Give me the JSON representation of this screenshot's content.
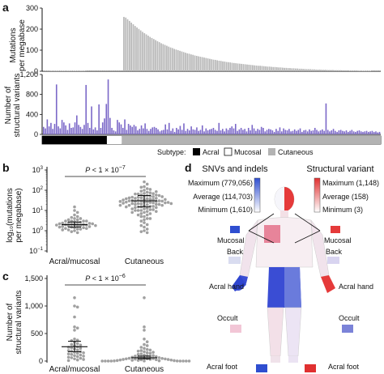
{
  "panel_labels": {
    "a": "a",
    "b": "b",
    "c": "c",
    "d": "d"
  },
  "chart_data": [
    {
      "panel": "a-top",
      "type": "bar",
      "ylabel": "Mutations per megabase",
      "ylim": [
        0,
        300
      ],
      "yticks": [
        0,
        100,
        200,
        300
      ],
      "subtype_counts": {
        "acral": 35,
        "mucosal": 8,
        "cutaneous": 140
      },
      "values": [
        4,
        3,
        3,
        3,
        2,
        2,
        2,
        2,
        2,
        2,
        2,
        2,
        2,
        2,
        2,
        2,
        2,
        2,
        2,
        2,
        2,
        2,
        2,
        1,
        1,
        1,
        1,
        1,
        1,
        1,
        1,
        1,
        1,
        1,
        1,
        1,
        1,
        1,
        1,
        1,
        1,
        1,
        1,
        258,
        255,
        247,
        239,
        231,
        223,
        215,
        208,
        201,
        194,
        187,
        181,
        175,
        169,
        163,
        158,
        153,
        148,
        143,
        138,
        133,
        129,
        125,
        121,
        117,
        113,
        110,
        106,
        103,
        100,
        97,
        94,
        91,
        88,
        85,
        83,
        80,
        78,
        75,
        73,
        71,
        69,
        67,
        65,
        63,
        61,
        59,
        57,
        55,
        54,
        52,
        50,
        49,
        47,
        46,
        44,
        43,
        42,
        40,
        39,
        38,
        37,
        36,
        35,
        34,
        33,
        32,
        31,
        30,
        29,
        28,
        27,
        26,
        26,
        25,
        24,
        23,
        22,
        22,
        21,
        20,
        20,
        19,
        18,
        18,
        17,
        16,
        16,
        15,
        15,
        14,
        14,
        13,
        13,
        12,
        12,
        11,
        11,
        10,
        10,
        10,
        9,
        9,
        8,
        8,
        8,
        7,
        7,
        7,
        6,
        6,
        6,
        6,
        5,
        5,
        5,
        5,
        4,
        4,
        4,
        4,
        3,
        3,
        3,
        3,
        3,
        2,
        2,
        2,
        2,
        2,
        2,
        2,
        1,
        1,
        1,
        1,
        1
      ]
    },
    {
      "panel": "a-bottom",
      "type": "bar",
      "ylabel": "Number of structural variants",
      "ylim": [
        0,
        1200
      ],
      "yticks": [
        0,
        400,
        800,
        1200
      ],
      "values": [
        150,
        120,
        300,
        160,
        230,
        110,
        210,
        1000,
        160,
        120,
        290,
        240,
        180,
        90,
        220,
        130,
        140,
        240,
        380,
        190,
        150,
        110,
        190,
        990,
        230,
        130,
        560,
        100,
        140,
        80,
        600,
        130,
        240,
        320,
        610,
        1100,
        330,
        130,
        80,
        60,
        290,
        240,
        200,
        130,
        300,
        90,
        210,
        180,
        150,
        190,
        160,
        80,
        110,
        180,
        120,
        220,
        110,
        70,
        110,
        140,
        150,
        130,
        100,
        60,
        80,
        90,
        200,
        100,
        230,
        70,
        120,
        50,
        130,
        100,
        170,
        90,
        220,
        70,
        110,
        80,
        160,
        100,
        90,
        140,
        70,
        90,
        180,
        60,
        120,
        80,
        100,
        110,
        130,
        90,
        70,
        230,
        80,
        110,
        60,
        120,
        90,
        130,
        160,
        120,
        210,
        70,
        100,
        130,
        90,
        110,
        60,
        130,
        80,
        190,
        120,
        70,
        110,
        90,
        150,
        130,
        60,
        90,
        110,
        100,
        80,
        50,
        110,
        70,
        140,
        60,
        120,
        90,
        80,
        110,
        60,
        70,
        100,
        70,
        90,
        120,
        50,
        80,
        90,
        60,
        100,
        70,
        80,
        130,
        90,
        60,
        80,
        100,
        70,
        620,
        90,
        60,
        80,
        110,
        70,
        50,
        80,
        90,
        70,
        60,
        80,
        50,
        70,
        90,
        60,
        50,
        70,
        80,
        60,
        50,
        60,
        70,
        50,
        60,
        70,
        50,
        60,
        40,
        50
      ]
    },
    {
      "panel": "b",
      "type": "scatter",
      "ylabel": "log10(mutations per megabase)",
      "categories": [
        "Acral/mucosal",
        "Cutaneous"
      ],
      "ylim": [
        0.1,
        1000
      ],
      "log_scale": true,
      "annotation": "P < 1 × 10−7",
      "summary": [
        {
          "category": "Acral/mucosal",
          "mean": 2.0,
          "lo": 1.5,
          "hi": 2.7
        },
        {
          "category": "Cutaneous",
          "mean": 30,
          "lo": 15,
          "hi": 55
        }
      ],
      "series": [
        {
          "category": "Acral/mucosal",
          "values": [
            15,
            10,
            8,
            6,
            5,
            4.5,
            4,
            4,
            3.5,
            3.5,
            3,
            3,
            3,
            3,
            2.8,
            2.6,
            2.5,
            2.5,
            2.4,
            2.3,
            2.2,
            2.2,
            2.1,
            2,
            2,
            2,
            1.9,
            1.9,
            1.8,
            1.8,
            1.7,
            1.7,
            1.6,
            1.6,
            1.5,
            1.5,
            1.4,
            1.4,
            1.3,
            1.3,
            1.2,
            1.2,
            1.1,
            1.1,
            1,
            0.9,
            0.8
          ]
        },
        {
          "category": "Cutaneous",
          "values": [
            260,
            200,
            150,
            120,
            100,
            90,
            80,
            75,
            70,
            65,
            60,
            55,
            52,
            50,
            48,
            45,
            43,
            40,
            40,
            38,
            36,
            35,
            34,
            32,
            31,
            30,
            30,
            30,
            29,
            28,
            28,
            27,
            26,
            25,
            25,
            24,
            24,
            23,
            22,
            22,
            21,
            20,
            20,
            20,
            19,
            18,
            18,
            17,
            16,
            16,
            15,
            15,
            14,
            14,
            13,
            12,
            12,
            11,
            11,
            10,
            10,
            10,
            9,
            9,
            8,
            8,
            7,
            7,
            6,
            6,
            5,
            5,
            4,
            4,
            3.5,
            3,
            2.5,
            2,
            1.8,
            1.5,
            1.2,
            1,
            0.9,
            0.8,
            45,
            55,
            65,
            35,
            25,
            15,
            18,
            22,
            28,
            33,
            38,
            42,
            48,
            58,
            68,
            85,
            110,
            140
          ]
        }
      ]
    },
    {
      "panel": "c",
      "type": "scatter",
      "ylabel": "Number of structural variants",
      "categories": [
        "Acral/mucosal",
        "Cutaneous"
      ],
      "ylim": [
        0,
        1500
      ],
      "yticks": [
        0,
        500,
        1000,
        1500
      ],
      "annotation": "P < 1 × 10−6",
      "summary": [
        {
          "category": "Acral/mucosal",
          "mean": 260,
          "lo": 170,
          "hi": 360
        },
        {
          "category": "Cutaneous",
          "mean": 60,
          "lo": 40,
          "hi": 90
        }
      ],
      "series": [
        {
          "category": "Acral/mucosal",
          "values": [
            1150,
            1000,
            980,
            800,
            620,
            600,
            560,
            400,
            380,
            370,
            340,
            320,
            300,
            290,
            280,
            260,
            250,
            240,
            230,
            220,
            200,
            190,
            180,
            170,
            160,
            150,
            140,
            130,
            120,
            110,
            100,
            90,
            80,
            70,
            60,
            50,
            40,
            30,
            20,
            10
          ]
        },
        {
          "category": "Cutaneous",
          "values": [
            1150,
            620,
            560,
            400,
            350,
            300,
            280,
            250,
            230,
            210,
            200,
            190,
            180,
            170,
            160,
            150,
            140,
            130,
            120,
            110,
            100,
            95,
            90,
            85,
            80,
            75,
            70,
            65,
            60,
            55,
            50,
            48,
            45,
            42,
            40,
            38,
            35,
            32,
            30,
            28,
            25,
            22,
            20,
            18,
            15,
            12,
            10,
            8,
            5,
            3,
            2,
            1,
            0,
            0,
            0,
            0,
            0,
            0,
            0,
            0
          ]
        }
      ]
    }
  ],
  "legend_a": {
    "title": "Subtype:",
    "acral": "Acral",
    "mucosal": "Mucosal",
    "cutaneous": "Cutaneous",
    "colors": {
      "acral": "#000000",
      "mucosal": "#ffffff",
      "cutaneous": "#b3b3b3"
    }
  },
  "panel_d": {
    "snv_title": "SNVs and indels",
    "sv_title": "Structural variant",
    "snv_max": "Maximum (779,056)",
    "snv_avg": "Average (114,703)",
    "snv_min": "Minimum (1,610)",
    "sv_max": "Maximum (1,148)",
    "sv_avg": "Average (158)",
    "sv_min": "Minimum (3)",
    "mucosal": "Mucosal",
    "back": "Back",
    "acral_hand": "Acral hand",
    "occult": "Occult",
    "acral_foot": "Acral foot",
    "colors": {
      "snv": "#2f4ed0",
      "sv": "#e03030"
    }
  },
  "colors": {
    "bar_top": "#b8b8b8",
    "bar_sv": "#7b68c8",
    "dots": "#a0a0a0"
  }
}
